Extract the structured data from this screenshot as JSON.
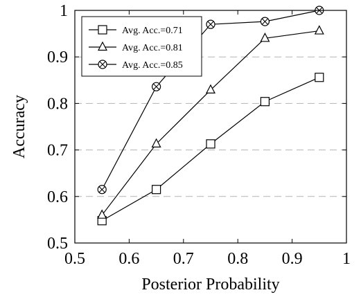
{
  "chart_data": {
    "type": "line",
    "xlabel": "Posterior Probability",
    "ylabel": "Accuracy",
    "xlim": [
      0.5,
      1
    ],
    "ylim": [
      0.5,
      1
    ],
    "xticks": [
      "0.5",
      "0.6",
      "0.7",
      "0.8",
      "0.9",
      "1"
    ],
    "yticks": [
      "0.5",
      "0.6",
      "0.7",
      "0.8",
      "0.9",
      "1"
    ],
    "grid": "horizontal dashed",
    "legend_position": "top-left",
    "series": [
      {
        "name": "Avg. Acc.=0.71",
        "marker": "square",
        "x": [
          0.55,
          0.65,
          0.75,
          0.85,
          0.95
        ],
        "y": [
          0.548,
          0.615,
          0.713,
          0.804,
          0.856
        ]
      },
      {
        "name": "Avg. Acc.=0.81",
        "marker": "triangle",
        "x": [
          0.55,
          0.65,
          0.75,
          0.85,
          0.95
        ],
        "y": [
          0.56,
          0.713,
          0.829,
          0.94,
          0.956
        ]
      },
      {
        "name": "Avg. Acc.=0.85",
        "marker": "circle-x",
        "x": [
          0.55,
          0.65,
          0.75,
          0.85,
          0.95
        ],
        "y": [
          0.615,
          0.836,
          0.97,
          0.976,
          1.0
        ]
      }
    ]
  }
}
